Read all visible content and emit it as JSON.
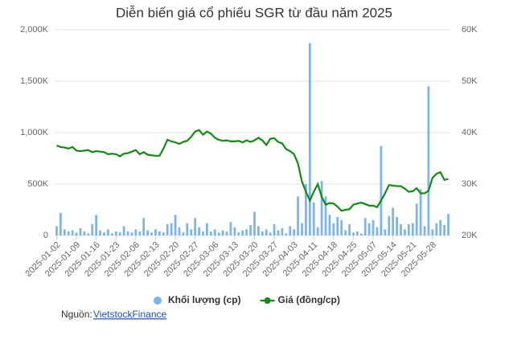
{
  "chart_data": {
    "type": "bar-line",
    "title": "Diễn biến giá cổ phiếu SGR từ đầu năm 2025",
    "categories": [
      "2025-01-02",
      null,
      null,
      null,
      null,
      "2025-01-09",
      null,
      null,
      null,
      null,
      "2025-01-16",
      null,
      null,
      null,
      null,
      "2025-01-23",
      null,
      null,
      null,
      null,
      "2025-02-06",
      null,
      null,
      null,
      null,
      "2025-02-13",
      null,
      null,
      null,
      null,
      "2025-02-20",
      null,
      null,
      null,
      null,
      "2025-02-27",
      null,
      null,
      null,
      null,
      "2025-03-06",
      null,
      null,
      null,
      null,
      "2025-03-13",
      null,
      null,
      null,
      null,
      "2025-03-20",
      null,
      null,
      null,
      null,
      "2025-03-27",
      null,
      null,
      null,
      null,
      "2025-04-03",
      null,
      null,
      null,
      null,
      "2025-04-11",
      null,
      null,
      null,
      null,
      "2025-04-18",
      null,
      null,
      null,
      null,
      "2025-04-25",
      null,
      null,
      null,
      null,
      "2025-05-07",
      null,
      null,
      null,
      null,
      "2025-05-14",
      null,
      null,
      null,
      null,
      "2025-05-21",
      null,
      null,
      null,
      null,
      "2025-05-28",
      null,
      null,
      null,
      null
    ],
    "series": [
      {
        "name": "Khối lượng (cp)",
        "type": "bar",
        "color": "#7cb5ec",
        "axis": "y",
        "values": [
          90000,
          220000,
          60000,
          40000,
          50000,
          30000,
          70000,
          40000,
          20000,
          110000,
          200000,
          50000,
          30000,
          60000,
          20000,
          40000,
          30000,
          90000,
          40000,
          30000,
          60000,
          40000,
          170000,
          50000,
          30000,
          60000,
          40000,
          30000,
          110000,
          120000,
          200000,
          80000,
          30000,
          120000,
          60000,
          170000,
          80000,
          40000,
          120000,
          40000,
          60000,
          30000,
          50000,
          40000,
          130000,
          80000,
          30000,
          50000,
          60000,
          100000,
          230000,
          90000,
          40000,
          60000,
          30000,
          110000,
          50000,
          70000,
          20000,
          90000,
          60000,
          380000,
          120000,
          500000,
          1870000,
          320000,
          80000,
          530000,
          380000,
          200000,
          120000,
          180000,
          150000,
          50000,
          110000,
          30000,
          40000,
          20000,
          170000,
          120000,
          150000,
          80000,
          870000,
          60000,
          190000,
          270000,
          180000,
          110000,
          60000,
          110000,
          120000,
          310000,
          450000,
          90000,
          1450000,
          60000,
          120000,
          150000,
          100000,
          210000
        ]
      },
      {
        "name": "Giá (đồng/cp)",
        "type": "line",
        "color": "#138a13",
        "axis": "y2",
        "values": [
          37500,
          37200,
          37100,
          36900,
          37200,
          36500,
          36400,
          36500,
          36600,
          36200,
          36400,
          36300,
          36200,
          35800,
          35900,
          35800,
          35400,
          35900,
          36000,
          36300,
          36600,
          35800,
          36200,
          35700,
          35600,
          35500,
          35500,
          36900,
          38600,
          38300,
          38100,
          37800,
          38200,
          38400,
          39200,
          40200,
          40500,
          39600,
          40200,
          39800,
          39000,
          38600,
          38400,
          38500,
          38300,
          38300,
          38400,
          38100,
          38500,
          38200,
          38500,
          39000,
          38500,
          37600,
          38800,
          38900,
          38200,
          37900,
          36800,
          36400,
          35800,
          34000,
          30500,
          28500,
          26800,
          28500,
          30000,
          27500,
          26000,
          26300,
          26200,
          25600,
          24800,
          25000,
          25100,
          26000,
          26200,
          26400,
          26100,
          25800,
          25800,
          25500,
          26800,
          28200,
          29800,
          29700,
          29600,
          29600,
          29100,
          28500,
          28600,
          29200,
          28200,
          28200,
          28700,
          31200,
          32000,
          32300,
          30800,
          31000
        ]
      }
    ],
    "ylim": [
      0,
      2000000
    ],
    "yticks": [
      0,
      {
        "value": 500000,
        "label": "500K"
      },
      {
        "value": 1000000,
        "label": "1,000K"
      },
      {
        "value": 1500000,
        "label": "1,500K"
      },
      {
        "value": 2000000,
        "label": "2,000K"
      }
    ],
    "y2lim": [
      20000,
      60000
    ],
    "y2ticks": [
      {
        "value": 20000,
        "label": "20K"
      },
      {
        "value": 30000,
        "label": "30K"
      },
      {
        "value": 40000,
        "label": "40K"
      },
      {
        "value": 50000,
        "label": "50K"
      },
      {
        "value": 60000,
        "label": "60K"
      }
    ],
    "grid": true,
    "legend": "bottom",
    "source_label": "Nguồn:",
    "source": "VietstockFinance"
  }
}
